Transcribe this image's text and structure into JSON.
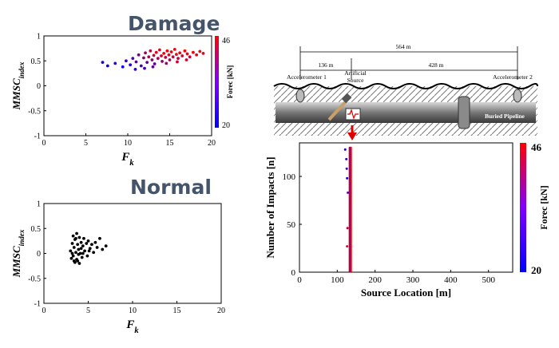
{
  "headings": {
    "damage": "Damage",
    "normal": "Normal"
  },
  "colors": {
    "low": "#0000ff",
    "high": "#ff0000",
    "normal_points": "#000000",
    "heading": "#44546a"
  },
  "diagram": {
    "labels": {
      "acc1": "Accelerometer 1",
      "acc2": "Accelerometer 2",
      "artificial": "Artificial",
      "source": "Source",
      "buried": "Buried Pipeline",
      "d564": "564 m",
      "d136": "136 m",
      "d428": "428 m"
    }
  },
  "chart_data": [
    {
      "id": "damage",
      "type": "scatter",
      "title": "Damage",
      "xlabel": "F_k",
      "ylabel": "MMSC_index",
      "xlim": [
        0,
        20
      ],
      "ylim": [
        -1,
        1
      ],
      "xticks": [
        0,
        5,
        10,
        15,
        20
      ],
      "yticks": [
        -1,
        -0.5,
        0,
        0.5,
        1
      ],
      "colorbar": {
        "label": "Forec [kN]",
        "min": 20,
        "max": 46,
        "ticks": [
          20,
          46
        ]
      },
      "points": [
        {
          "x": 7.0,
          "y": 0.47,
          "f": 22
        },
        {
          "x": 7.6,
          "y": 0.4,
          "f": 21
        },
        {
          "x": 8.5,
          "y": 0.45,
          "f": 24
        },
        {
          "x": 9.4,
          "y": 0.38,
          "f": 21
        },
        {
          "x": 9.8,
          "y": 0.5,
          "f": 26
        },
        {
          "x": 10.3,
          "y": 0.42,
          "f": 23
        },
        {
          "x": 10.6,
          "y": 0.55,
          "f": 28
        },
        {
          "x": 11.0,
          "y": 0.48,
          "f": 30
        },
        {
          "x": 11.3,
          "y": 0.62,
          "f": 32
        },
        {
          "x": 11.6,
          "y": 0.4,
          "f": 27
        },
        {
          "x": 11.9,
          "y": 0.56,
          "f": 34
        },
        {
          "x": 12.1,
          "y": 0.66,
          "f": 36
        },
        {
          "x": 12.3,
          "y": 0.47,
          "f": 30
        },
        {
          "x": 12.5,
          "y": 0.58,
          "f": 38
        },
        {
          "x": 12.7,
          "y": 0.7,
          "f": 40
        },
        {
          "x": 12.9,
          "y": 0.52,
          "f": 33
        },
        {
          "x": 13.1,
          "y": 0.61,
          "f": 41
        },
        {
          "x": 13.2,
          "y": 0.44,
          "f": 29
        },
        {
          "x": 13.4,
          "y": 0.67,
          "f": 43
        },
        {
          "x": 13.6,
          "y": 0.55,
          "f": 37
        },
        {
          "x": 13.8,
          "y": 0.72,
          "f": 44
        },
        {
          "x": 14.0,
          "y": 0.6,
          "f": 42
        },
        {
          "x": 14.1,
          "y": 0.49,
          "f": 35
        },
        {
          "x": 14.3,
          "y": 0.65,
          "f": 45
        },
        {
          "x": 14.5,
          "y": 0.57,
          "f": 40
        },
        {
          "x": 14.7,
          "y": 0.7,
          "f": 46
        },
        {
          "x": 14.9,
          "y": 0.62,
          "f": 43
        },
        {
          "x": 15.0,
          "y": 0.52,
          "f": 38
        },
        {
          "x": 15.2,
          "y": 0.68,
          "f": 45
        },
        {
          "x": 15.4,
          "y": 0.58,
          "f": 41
        },
        {
          "x": 15.6,
          "y": 0.73,
          "f": 46
        },
        {
          "x": 15.8,
          "y": 0.63,
          "f": 44
        },
        {
          "x": 16.0,
          "y": 0.55,
          "f": 39
        },
        {
          "x": 16.2,
          "y": 0.66,
          "f": 45
        },
        {
          "x": 16.5,
          "y": 0.6,
          "f": 42
        },
        {
          "x": 16.8,
          "y": 0.7,
          "f": 46
        },
        {
          "x": 17.1,
          "y": 0.64,
          "f": 44
        },
        {
          "x": 17.4,
          "y": 0.58,
          "f": 40
        },
        {
          "x": 17.8,
          "y": 0.67,
          "f": 45
        },
        {
          "x": 18.2,
          "y": 0.62,
          "f": 43
        },
        {
          "x": 18.6,
          "y": 0.69,
          "f": 46
        },
        {
          "x": 19.0,
          "y": 0.65,
          "f": 44
        },
        {
          "x": 12.0,
          "y": 0.35,
          "f": 26
        },
        {
          "x": 13.0,
          "y": 0.38,
          "f": 31
        },
        {
          "x": 14.6,
          "y": 0.45,
          "f": 36
        },
        {
          "x": 10.9,
          "y": 0.33,
          "f": 25
        },
        {
          "x": 15.9,
          "y": 0.48,
          "f": 41
        },
        {
          "x": 17.0,
          "y": 0.52,
          "f": 42
        }
      ]
    },
    {
      "id": "normal",
      "type": "scatter",
      "title": "Normal",
      "xlabel": "F_k",
      "ylabel": "MMSC_index",
      "xlim": [
        0,
        20
      ],
      "ylim": [
        -1,
        1
      ],
      "xticks": [
        0,
        5,
        10,
        15,
        20
      ],
      "yticks": [
        -1,
        -0.5,
        0,
        0.5,
        1
      ],
      "points": [
        {
          "x": 3.0,
          "y": 0.05
        },
        {
          "x": 3.1,
          "y": -0.1
        },
        {
          "x": 3.2,
          "y": 0.2
        },
        {
          "x": 3.3,
          "y": -0.05
        },
        {
          "x": 3.3,
          "y": 0.35
        },
        {
          "x": 3.4,
          "y": 0.12
        },
        {
          "x": 3.5,
          "y": -0.18
        },
        {
          "x": 3.5,
          "y": 0.28
        },
        {
          "x": 3.6,
          "y": 0.02
        },
        {
          "x": 3.7,
          "y": 0.4
        },
        {
          "x": 3.7,
          "y": -0.12
        },
        {
          "x": 3.8,
          "y": 0.18
        },
        {
          "x": 3.9,
          "y": 0.08
        },
        {
          "x": 4.0,
          "y": -0.2
        },
        {
          "x": 4.0,
          "y": 0.32
        },
        {
          "x": 4.1,
          "y": 0.0
        },
        {
          "x": 4.2,
          "y": 0.22
        },
        {
          "x": 4.3,
          "y": -0.08
        },
        {
          "x": 4.4,
          "y": 0.15
        },
        {
          "x": 4.5,
          "y": 0.3
        },
        {
          "x": 4.6,
          "y": 0.05
        },
        {
          "x": 4.8,
          "y": 0.2
        },
        {
          "x": 4.9,
          "y": -0.05
        },
        {
          "x": 5.0,
          "y": 0.25
        },
        {
          "x": 5.2,
          "y": 0.1
        },
        {
          "x": 5.4,
          "y": 0.18
        },
        {
          "x": 5.6,
          "y": 0.02
        },
        {
          "x": 5.8,
          "y": 0.22
        },
        {
          "x": 6.0,
          "y": 0.12
        },
        {
          "x": 6.3,
          "y": 0.3
        },
        {
          "x": 6.6,
          "y": 0.08
        },
        {
          "x": 7.0,
          "y": 0.15
        },
        {
          "x": 3.4,
          "y": -0.15
        },
        {
          "x": 3.6,
          "y": 0.3
        },
        {
          "x": 3.9,
          "y": -0.02
        },
        {
          "x": 4.2,
          "y": 0.1
        },
        {
          "x": 3.2,
          "y": 0.0
        },
        {
          "x": 3.8,
          "y": -0.15
        },
        {
          "x": 4.4,
          "y": 0.0
        },
        {
          "x": 5.1,
          "y": 0.05
        }
      ]
    },
    {
      "id": "source_location",
      "type": "scatter",
      "title": "",
      "xlabel": "Source Location [m]",
      "ylabel": "Number of Impacts [n]",
      "xlim": [
        0,
        564
      ],
      "ylim": [
        0,
        135
      ],
      "xticks": [
        0,
        100,
        200,
        300,
        400,
        500
      ],
      "yticks": [
        0,
        50,
        100
      ],
      "colorbar": {
        "label": "Forec [kN]",
        "min": 20,
        "max": 46,
        "ticks": [
          20,
          46
        ]
      },
      "series": [
        {
          "x": 136,
          "n_from": 1,
          "n_to": 130,
          "f": 46
        },
        {
          "x": 133,
          "n_from": 1,
          "n_to": 130,
          "f": 38
        }
      ],
      "outliers": [
        {
          "x": 121,
          "y": 128,
          "f": 22
        },
        {
          "x": 124,
          "y": 118,
          "f": 24
        },
        {
          "x": 126,
          "y": 98,
          "f": 21
        },
        {
          "x": 127,
          "y": 46,
          "f": 40
        },
        {
          "x": 126,
          "y": 27,
          "f": 44
        },
        {
          "x": 128,
          "y": 83,
          "f": 30
        },
        {
          "x": 125,
          "y": 108,
          "f": 26
        }
      ]
    }
  ]
}
